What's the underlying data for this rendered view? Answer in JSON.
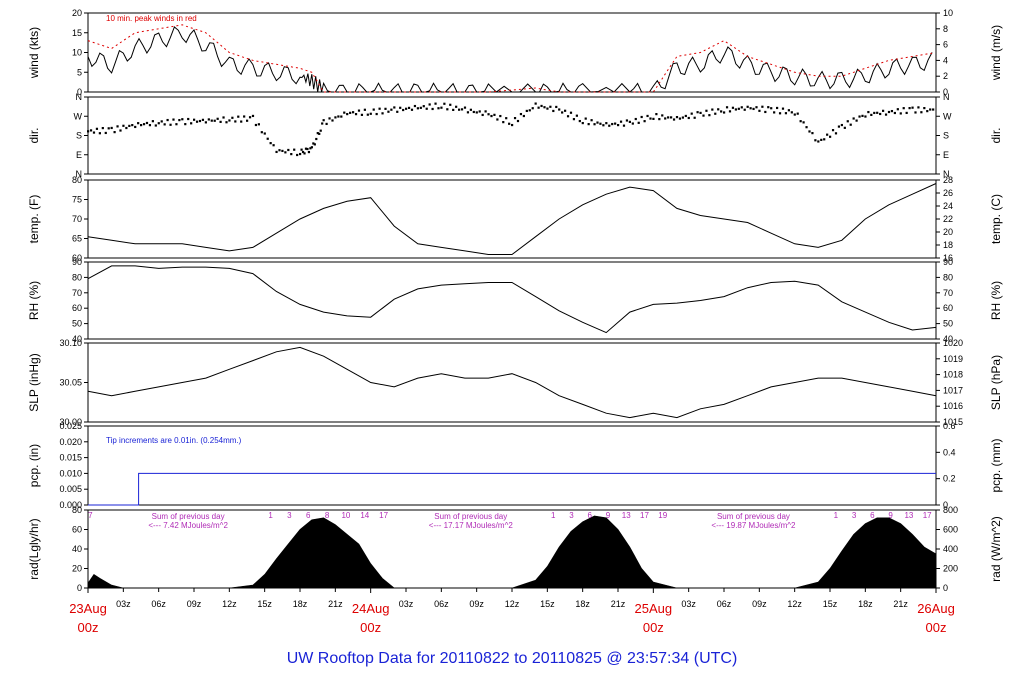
{
  "footer_title": "UW Rooftop Data for 20110822  to  20110825 @ 23:57:34  (UTC)",
  "colors": {
    "axis": "#000000",
    "red": "#dd0000",
    "blue": "#1a23d6",
    "purple": "#b02bb6"
  },
  "chart_data": {
    "type": "line",
    "x_hours": [
      0,
      72
    ],
    "x_ticks_top": [
      "03z",
      "06z",
      "09z",
      "12z",
      "15z",
      "18z",
      "21z",
      "03z",
      "06z",
      "09z",
      "12z",
      "15z",
      "18z",
      "21z",
      "03z",
      "06z",
      "09z",
      "12z",
      "15z",
      "18z",
      "21z"
    ],
    "day_labels": [
      {
        "date": "23Aug",
        "time": "00z"
      },
      {
        "date": "24Aug",
        "time": "00z"
      },
      {
        "date": "25Aug",
        "time": "00z"
      },
      {
        "date": "26Aug",
        "time": "00z"
      }
    ],
    "panels": [
      {
        "id": "wind",
        "type": "line",
        "ylabel_left": "wind (kts)",
        "ylabel_right": "wind (m/s)",
        "ylim": [
          0,
          20
        ],
        "yticks": [
          "0",
          "5",
          "10",
          "15",
          "20"
        ],
        "right_ticks": [
          "0",
          "2",
          "4",
          "6",
          "8",
          "10"
        ],
        "annotation": "10 min. peak winds in red",
        "series": [
          {
            "x": [
              0,
              2,
              4,
              6,
              8,
              10,
              12,
              14,
              16,
              18,
              19,
              20,
              22,
              24,
              26,
              28,
              30,
              32,
              34,
              38,
              40,
              42,
              46,
              48,
              50,
              52,
              54,
              56,
              58,
              60,
              62,
              64,
              66,
              68,
              70,
              72
            ],
            "y": [
              9,
              7,
              11,
              13,
              15,
              12,
              7,
              6,
              5,
              4,
              3,
              0,
              0,
              0,
              0,
              0,
              0,
              0,
              0,
              0,
              0,
              0,
              0,
              0,
              6,
              7,
              10,
              7,
              5,
              4,
              3,
              3,
              4,
              6,
              7,
              8
            ]
          },
          {
            "x": [
              0,
              2,
              4,
              6,
              8,
              10,
              12,
              14,
              16,
              18,
              19,
              20,
              22,
              24,
              26,
              28,
              30,
              32,
              34,
              38,
              40,
              42,
              46,
              48,
              50,
              52,
              54,
              56,
              58,
              60,
              62,
              64,
              66,
              68,
              70,
              72
            ],
            "y": [
              13,
              11,
              15,
              16,
              17,
              15,
              10,
              8,
              7,
              6,
              5,
              0,
              0,
              0,
              0,
              0,
              0,
              0,
              0,
              1,
              0,
              0,
              0,
              0,
              9,
              10,
              13,
              9,
              7,
              5,
              4,
              4,
              6,
              8,
              9,
              10
            ]
          }
        ]
      },
      {
        "id": "dir",
        "type": "scatter",
        "ylabel_left": "dir.",
        "ylabel_right": "dir.",
        "ylim": [
          0,
          360
        ],
        "yticks": [
          "N",
          "E",
          "S",
          "W",
          "N"
        ],
        "right_ticks": [
          "N",
          "E",
          "S",
          "W",
          "N"
        ],
        "series": [
          {
            "x": [
              0,
              2,
              4,
              6,
              8,
              10,
              12,
              14,
              16,
              18,
              19,
              20,
              22,
              24,
              26,
              28,
              30,
              32,
              34,
              36,
              38,
              40,
              42,
              44,
              46,
              48,
              50,
              52,
              54,
              56,
              58,
              60,
              62,
              64,
              66,
              68,
              70,
              72
            ],
            "y": [
              200,
              205,
              230,
              240,
              245,
              250,
              255,
              260,
              110,
              100,
              120,
              240,
              285,
              290,
              300,
              310,
              320,
              300,
              280,
              240,
              320,
              300,
              250,
              230,
              240,
              270,
              260,
              280,
              300,
              310,
              300,
              290,
              150,
              220,
              280,
              290,
              300,
              300
            ]
          }
        ]
      },
      {
        "id": "temp",
        "type": "line",
        "ylabel_left": "temp. (F)",
        "ylabel_right": "temp. (C)",
        "ylim": [
          60,
          82
        ],
        "yticks": [
          "60",
          "65",
          "70",
          "75",
          "80"
        ],
        "right_ticks": [
          "16",
          "18",
          "20",
          "22",
          "24",
          "26",
          "28"
        ],
        "series": [
          {
            "x": [
              0,
              2,
              4,
              6,
              8,
              10,
              12,
              14,
              16,
              18,
              20,
              22,
              24,
              26,
              28,
              30,
              32,
              34,
              36,
              38,
              40,
              42,
              44,
              46,
              48,
              50,
              52,
              54,
              56,
              58,
              60,
              62,
              64,
              66,
              68,
              70,
              72
            ],
            "y": [
              66,
              65,
              64,
              64,
              64,
              63,
              62,
              63,
              67,
              71,
              74,
              76,
              77,
              69,
              64,
              63,
              62,
              61,
              61,
              66,
              71,
              75,
              78,
              80,
              79,
              74,
              72,
              71,
              70,
              67,
              64,
              63,
              65,
              71,
              75,
              78,
              81
            ]
          }
        ]
      },
      {
        "id": "rh",
        "type": "line",
        "ylabel_left": "RH (%)",
        "ylabel_right": "RH (%)",
        "ylim": [
          35,
          95
        ],
        "yticks": [
          "40",
          "50",
          "60",
          "70",
          "80",
          "90"
        ],
        "right_ticks": [
          "40",
          "50",
          "60",
          "70",
          "80",
          "90"
        ],
        "series": [
          {
            "x": [
              0,
              2,
              4,
              6,
              8,
              10,
              12,
              14,
              16,
              18,
              20,
              22,
              24,
              26,
              28,
              30,
              32,
              34,
              36,
              38,
              40,
              42,
              44,
              46,
              48,
              50,
              52,
              54,
              56,
              58,
              60,
              62,
              64,
              66,
              68,
              70,
              72
            ],
            "y": [
              82,
              92,
              92,
              90,
              91,
              91,
              90,
              86,
              72,
              62,
              56,
              53,
              52,
              66,
              74,
              77,
              78,
              79,
              79,
              68,
              57,
              48,
              40,
              56,
              62,
              63,
              65,
              68,
              75,
              79,
              80,
              77,
              64,
              56,
              48,
              42,
              44
            ]
          }
        ]
      },
      {
        "id": "slp",
        "type": "line",
        "ylabel_left": "SLP (inHg)",
        "ylabel_right": "SLP (hPa)",
        "ylim": [
          29.96,
          30.14
        ],
        "yticks": [
          "30.00",
          "30.05",
          "30.10"
        ],
        "right_ticks": [
          "1015",
          "1016",
          "1017",
          "1018",
          "1019",
          "1020"
        ],
        "series": [
          {
            "x": [
              0,
              2,
              4,
              6,
              8,
              10,
              12,
              14,
              16,
              18,
              20,
              22,
              24,
              26,
              28,
              30,
              32,
              34,
              36,
              38,
              40,
              42,
              44,
              46,
              48,
              50,
              52,
              54,
              56,
              58,
              60,
              62,
              64,
              66,
              68,
              70,
              72
            ],
            "y": [
              30.03,
              30.02,
              30.03,
              30.04,
              30.05,
              30.06,
              30.08,
              30.1,
              30.12,
              30.13,
              30.11,
              30.08,
              30.05,
              30.04,
              30.06,
              30.07,
              30.06,
              30.06,
              30.07,
              30.05,
              30.02,
              30.0,
              29.98,
              29.97,
              29.98,
              29.97,
              29.99,
              30.0,
              30.02,
              30.04,
              30.05,
              30.06,
              30.06,
              30.05,
              30.04,
              30.03,
              30.02
            ]
          }
        ]
      },
      {
        "id": "pcp",
        "type": "line",
        "ylabel_left": "pcp. (in)",
        "ylabel_right": "pcp. (mm)",
        "ylim": [
          0,
          0.025
        ],
        "yticks": [
          "0.000",
          "0.005",
          "0.010",
          "0.015",
          "0.020",
          "0.025"
        ],
        "right_ticks": [
          "0",
          "0.2",
          "0.4",
          "0.6"
        ],
        "annotation": "Tip increments are 0.01in. (0.254mm.)",
        "series": [
          {
            "x": [
              0,
              4.3,
              4.3,
              72
            ],
            "y": [
              0,
              0,
              0.01,
              0.01
            ]
          }
        ]
      },
      {
        "id": "rad",
        "type": "area",
        "ylabel_left": "rad(Lgly/hr)",
        "ylabel_right": "rad (W/m^2)",
        "ylim": [
          0,
          80
        ],
        "yticks": [
          "0",
          "20",
          "40",
          "60",
          "80"
        ],
        "right_ticks": [
          "0",
          "200",
          "400",
          "600",
          "800"
        ],
        "series": [
          {
            "x": [
              0,
              0.5,
              1,
              2,
              3,
              12,
              14,
              15,
              16,
              17,
              18,
              19,
              20,
              21,
              22,
              23,
              24,
              25,
              26,
              36,
              38,
              39,
              40,
              41,
              42,
              43,
              44,
              45,
              46,
              47,
              48,
              50,
              60,
              62,
              63,
              64,
              65,
              66,
              67,
              68,
              69,
              70,
              71,
              72
            ],
            "y": [
              5,
              14,
              10,
              3,
              0,
              0,
              3,
              14,
              30,
              45,
              60,
              70,
              72,
              65,
              55,
              45,
              25,
              10,
              0,
              0,
              8,
              22,
              42,
              58,
              68,
              74,
              72,
              60,
              42,
              20,
              6,
              0,
              0,
              6,
              20,
              38,
              55,
              66,
              72,
              72,
              66,
              55,
              42,
              35
            ]
          }
        ],
        "hour_labels": [
          [
            "7",
            "1",
            "3",
            "6",
            "8",
            "10",
            "14",
            "17"
          ],
          [
            "1",
            "3",
            "6",
            "9",
            "13",
            "17",
            "19"
          ],
          [
            "1",
            "3",
            "6",
            "9",
            "13",
            "17"
          ]
        ],
        "daily_sums": [
          {
            "line1": "Sum of previous day",
            "line2": "<--- 7.42 MJoules/m^2"
          },
          {
            "line1": "Sum of previous day",
            "line2": "<--- 17.17 MJoules/m^2"
          },
          {
            "line1": "Sum of previous day",
            "line2": "<--- 19.87 MJoules/m^2"
          }
        ]
      }
    ]
  }
}
